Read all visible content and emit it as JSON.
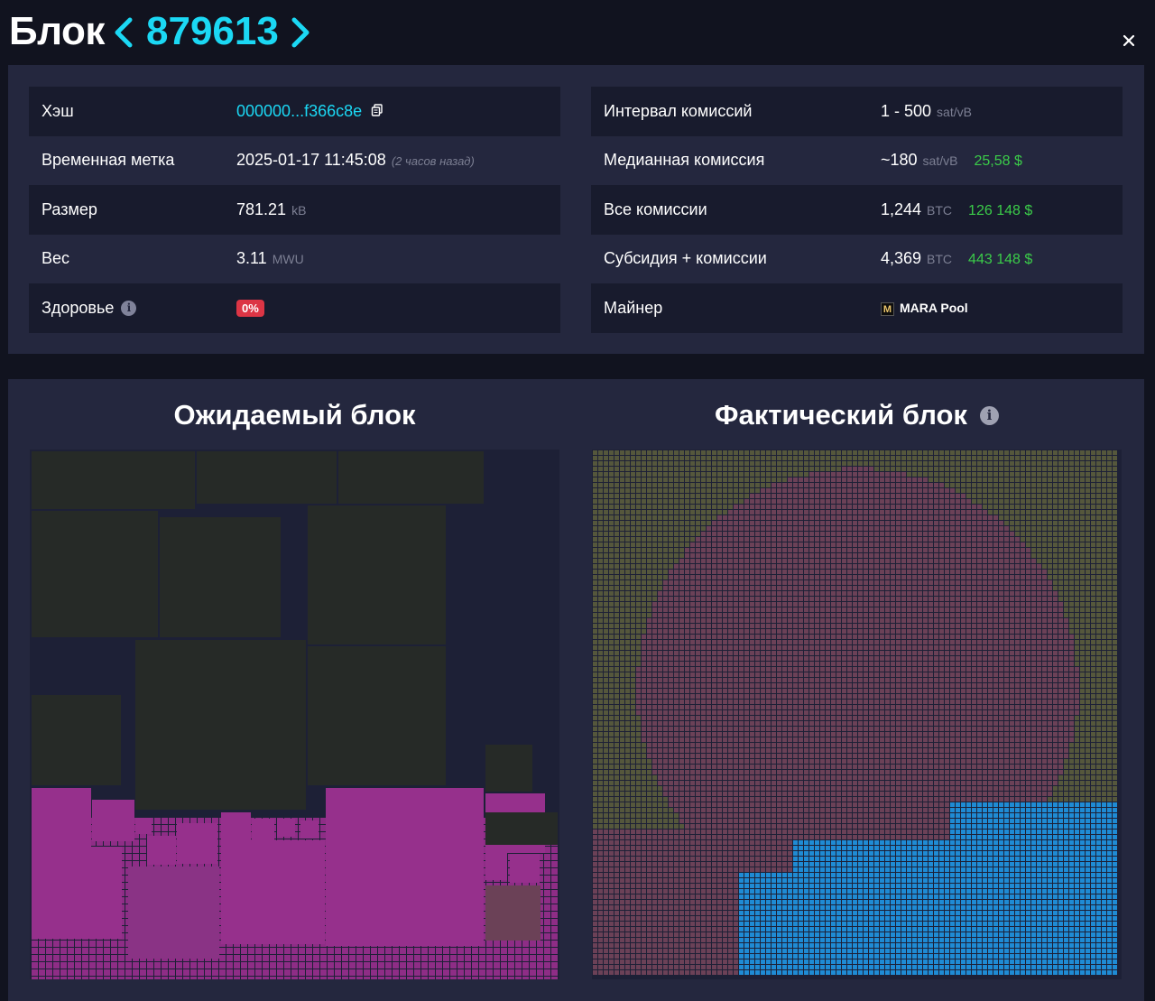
{
  "header": {
    "title": "Блок",
    "block_number": "879613",
    "prev_icon": "chevron-left-icon",
    "next_icon": "chevron-right-icon",
    "close_icon": "close-icon"
  },
  "details": {
    "left": {
      "hash_label": "Хэш",
      "hash_value": "000000...f366c8e",
      "timestamp_label": "Временная метка",
      "timestamp_value": "2025-01-17 11:45:08",
      "timestamp_ago": "(2 часов назад)",
      "size_label": "Размер",
      "size_value": "781.21",
      "size_unit": "kB",
      "weight_label": "Вес",
      "weight_value": "3.11",
      "weight_unit": "MWU",
      "health_label": "Здоровье",
      "health_value": "0%"
    },
    "right": {
      "fee_span_label": "Интервал комиссий",
      "fee_span_value": "1 - 500",
      "fee_span_unit": "sat/vB",
      "median_fee_label": "Медианная комиссия",
      "median_fee_value": "~180",
      "median_fee_unit": "sat/vB",
      "median_fee_fiat": "25,58 $",
      "total_fees_label": "Все комиссии",
      "total_fees_value": "1,244",
      "total_fees_unit": "BTC",
      "total_fees_fiat": "126 148 $",
      "subsidy_label": "Субсидия + комиссии",
      "subsidy_value": "4,369",
      "subsidy_unit": "BTC",
      "subsidy_fiat": "443 148 $",
      "miner_label": "Майнер",
      "miner_logo_letter": "M",
      "miner_name": "MARA Pool"
    }
  },
  "blocks": {
    "expected_title": "Ожидаемый блок",
    "actual_title": "Фактический блок",
    "colors": {
      "dark_green": "#262a27",
      "magenta": "#96308c",
      "blue": "#1f8bd4",
      "olive": "#55573c",
      "mauve": "#6b4157"
    }
  },
  "colors": {
    "accent": "#1bd8f4",
    "fiat_green": "#3bcc49",
    "badge_red": "#dc3545",
    "panel": "#24273e"
  }
}
